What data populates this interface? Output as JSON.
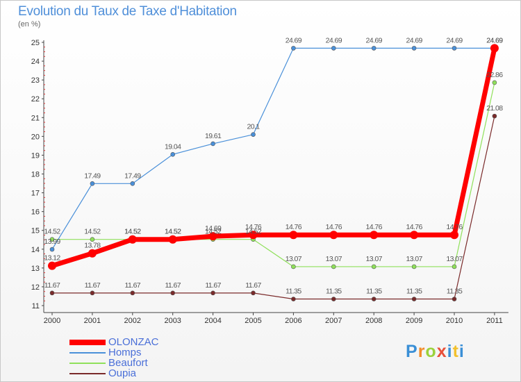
{
  "title": "Evolution du Taux de Taxe d'Habitation",
  "subtitle": "(en %)",
  "logo": [
    "P",
    "r",
    "o",
    "x",
    "i",
    "t",
    "i"
  ],
  "chart_data": {
    "type": "line",
    "title": "Evolution du Taux de Taxe d'Habitation",
    "ylabel": "(en %)",
    "xlabel": "",
    "ylim": [
      11,
      25
    ],
    "yticks": [
      "11",
      "12",
      "13",
      "14",
      "15",
      "16",
      "17",
      "18",
      "19",
      "20",
      "21",
      "22",
      "23",
      "24",
      "25"
    ],
    "x": [
      "2000",
      "2001",
      "2002",
      "2003",
      "2004",
      "2005",
      "2006",
      "2007",
      "2008",
      "2009",
      "2010",
      "2011"
    ],
    "series": [
      {
        "name": "OLONZAC",
        "color": "#ff0000",
        "values": [
          13.12,
          13.78,
          14.52,
          14.52,
          14.69,
          14.76,
          14.76,
          14.76,
          14.76,
          14.76,
          14.76,
          24.69
        ],
        "labels": [
          "13.12",
          "13.78",
          "14.52",
          "14.52",
          "14.69",
          "14.76",
          "14.76",
          "14.76",
          "14.76",
          "14.76",
          "14.76",
          "24.69"
        ]
      },
      {
        "name": "Homps",
        "color": "#4a90d9",
        "values": [
          13.99,
          17.49,
          17.49,
          19.04,
          19.61,
          20.1,
          24.69,
          24.69,
          24.69,
          24.69,
          24.69,
          24.69
        ],
        "labels": [
          "13.99",
          "17.49",
          "17.49",
          "19.04",
          "19.61",
          "20.1",
          "24.69",
          "24.69",
          "24.69",
          "24.69",
          "24.69",
          "24.69"
        ]
      },
      {
        "name": "Beaufort",
        "color": "#8fe05a",
        "values": [
          14.52,
          14.52,
          14.52,
          14.52,
          14.52,
          14.52,
          13.07,
          13.07,
          13.07,
          13.07,
          13.07,
          22.86
        ],
        "labels": [
          "14.52",
          "14.52",
          "14.52",
          "14.52",
          "14.52",
          "14.52",
          "13.07",
          "13.07",
          "13.07",
          "13.07",
          "13.07",
          "22.86"
        ]
      },
      {
        "name": "Oupia",
        "color": "#7a2a2a",
        "values": [
          11.67,
          11.67,
          11.67,
          11.67,
          11.67,
          11.67,
          11.35,
          11.35,
          11.35,
          11.35,
          11.35,
          21.08
        ],
        "labels": [
          "11.67",
          "11.67",
          "11.67",
          "11.67",
          "11.67",
          "11.67",
          "11.35",
          "11.35",
          "11.35",
          "11.35",
          "11.35",
          "21.08"
        ]
      }
    ],
    "grid": false,
    "legend": "bottom-left"
  }
}
